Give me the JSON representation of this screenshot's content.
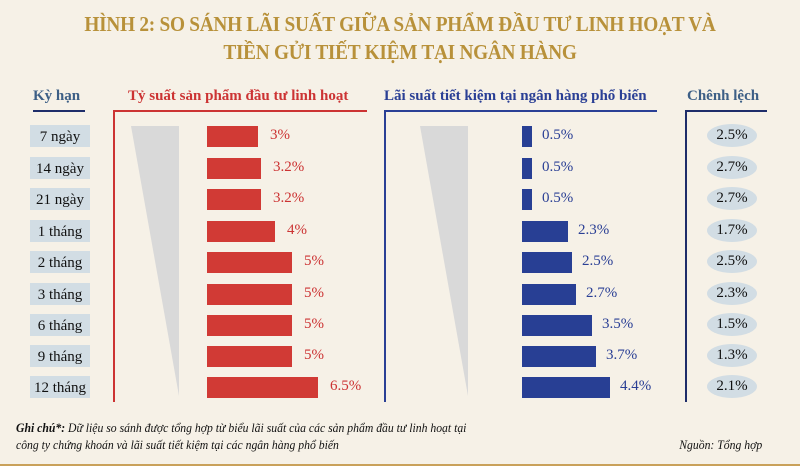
{
  "title": {
    "line1": "HÌNH 2:  SO SÁNH LÃI SUẤT GIỮA SẢN PHẨM ĐẦU TƯ LINH HOẠT VÀ",
    "line2": "TIỀN GỬI TIẾT KIỆM TẠI NGÂN HÀNG"
  },
  "headers": {
    "term": "Kỳ hạn",
    "flexible": "Tỷ suất sản phẩm đầu tư linh hoạt",
    "savings": "Lãi suất tiết kiệm tại ngân hàng phổ biến",
    "difference": "Chênh lệch"
  },
  "rows": [
    {
      "term": "7 ngày",
      "flexible": "3%",
      "savings": "0.5%",
      "diff": "2.5%"
    },
    {
      "term": "14 ngày",
      "flexible": "3.2%",
      "savings": "0.5%",
      "diff": "2.7%"
    },
    {
      "term": "21 ngày",
      "flexible": "3.2%",
      "savings": "0.5%",
      "diff": "2.7%"
    },
    {
      "term": "1 tháng",
      "flexible": "4%",
      "savings": "2.3%",
      "diff": "1.7%"
    },
    {
      "term": "2 tháng",
      "flexible": "5%",
      "savings": "2.5%",
      "diff": "2.5%"
    },
    {
      "term": "3 tháng",
      "flexible": "5%",
      "savings": "2.7%",
      "diff": "2.3%"
    },
    {
      "term": "6 tháng",
      "flexible": "5%",
      "savings": "3.5%",
      "diff": "1.5%"
    },
    {
      "term": "9 tháng",
      "flexible": "5%",
      "savings": "3.7%",
      "diff": "1.3%"
    },
    {
      "term": "12 tháng",
      "flexible": "6.5%",
      "savings": "4.4%",
      "diff": "2.1%"
    }
  ],
  "note": {
    "label": "Ghi chú*:",
    "text": " Dữ liệu so sánh được  tổng hợp từ biểu lãi suất của các sản phẩm đầu tư linh hoạt tại",
    "text2": "công ty chứng khoán và lãi suất  tiết kiệm tại các ngân hàng phổ biến"
  },
  "source": "Nguồn: Tổng hợp",
  "colors": {
    "title": "#b8913a",
    "flexible": "#d13a35",
    "savings": "#283f94",
    "pill": "#d2dde4",
    "background": "#f6f1e7"
  },
  "chart_data": {
    "type": "bar",
    "title": "HÌNH 2: SO SÁNH LÃI SUẤT GIỮA SẢN PHẨM ĐẦU TƯ LINH HOẠT VÀ TIỀN GỬI TIẾT KIỆM TẠI NGÂN HÀNG",
    "orientation": "horizontal",
    "categories": [
      "7 ngày",
      "14 ngày",
      "21 ngày",
      "1 tháng",
      "2 tháng",
      "3 tháng",
      "6 tháng",
      "9 tháng",
      "12 tháng"
    ],
    "series": [
      {
        "name": "Tỷ suất sản phẩm đầu tư linh hoạt",
        "color": "#d13a35",
        "values": [
          3,
          3.2,
          3.2,
          4,
          5,
          5,
          5,
          5,
          6.5
        ]
      },
      {
        "name": "Lãi suất tiết kiệm tại ngân hàng phổ biến",
        "color": "#283f94",
        "values": [
          0.5,
          0.5,
          0.5,
          2.3,
          2.5,
          2.7,
          3.5,
          3.7,
          4.4
        ]
      },
      {
        "name": "Chênh lệch",
        "values": [
          2.5,
          2.7,
          2.7,
          1.7,
          2.5,
          2.3,
          1.5,
          1.3,
          2.1
        ]
      }
    ],
    "xlabel": "Kỳ hạn",
    "ylabel": "%",
    "unit": "%"
  }
}
